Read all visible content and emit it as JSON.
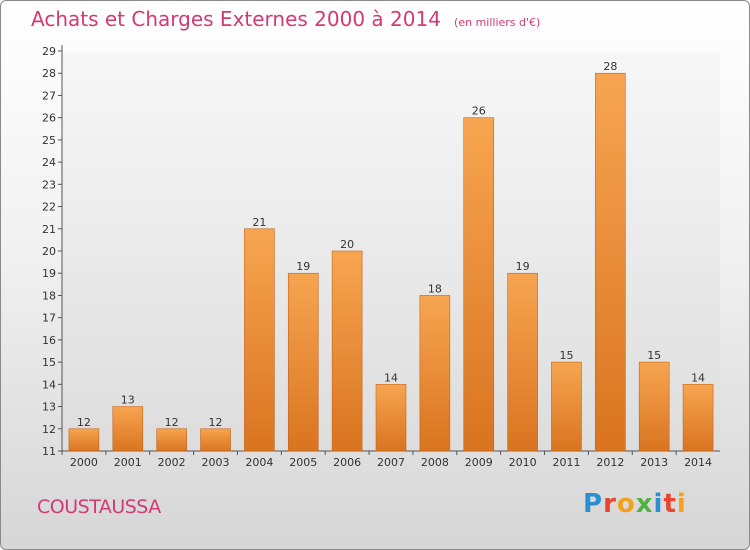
{
  "header": {
    "title": "Achats et Charges Externes 2000 à 2014",
    "unit": "(en milliers d'€)"
  },
  "footer": {
    "commune": "COUSTAUSSA",
    "logo_text": "Proxiti"
  },
  "colors": {
    "title": "#d23a73",
    "bar_light": "#f7a551",
    "bar_dark": "#d97420",
    "bar_edge": "#c4661c"
  },
  "chart_data": {
    "type": "bar",
    "title": "Achats et Charges Externes 2000 à 2014",
    "subtitle": "(en milliers d'€)",
    "categories": [
      "2000",
      "2001",
      "2002",
      "2003",
      "2004",
      "2005",
      "2006",
      "2007",
      "2008",
      "2009",
      "2010",
      "2011",
      "2012",
      "2013",
      "2014"
    ],
    "values": [
      12,
      13,
      12,
      12,
      21,
      19,
      20,
      14,
      18,
      26,
      19,
      15,
      28,
      15,
      14
    ],
    "ylim": [
      11,
      29
    ],
    "yticks": [
      11,
      12,
      13,
      14,
      15,
      16,
      17,
      18,
      19,
      20,
      21,
      22,
      23,
      24,
      25,
      26,
      27,
      28,
      29
    ],
    "grid": false,
    "data_labels": true
  }
}
